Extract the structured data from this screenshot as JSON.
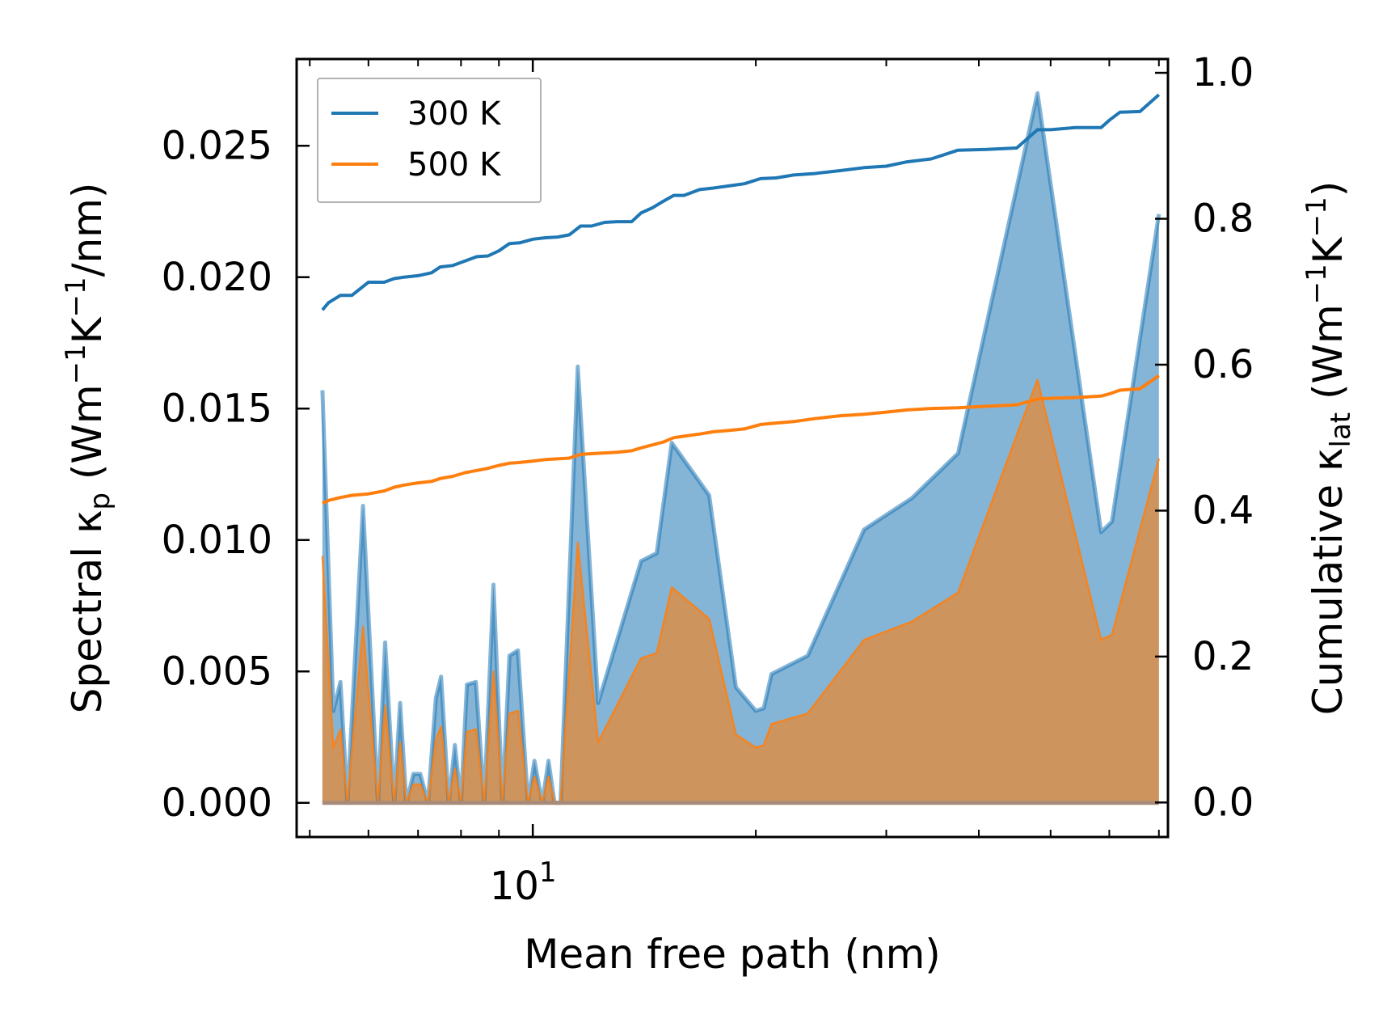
{
  "chart_data": {
    "type": "line",
    "xlabel": "Mean free path (nm)",
    "ylabel_left": "Spectral κ",
    "ylabel_left_sub": "p",
    "ylabel_left_unit_a": "(Wm",
    "ylabel_left_unit_b": "K",
    "ylabel_left_unit_c": "/nm)",
    "ylabel_right": "Cumulative κ",
    "ylabel_right_sub": "lat",
    "ylabel_right_unit_a": "(Wm",
    "ylabel_right_unit_b": "K",
    "ylabel_right_unit_c": ")",
    "exponent": "−1",
    "x_scale": "log",
    "xlim": [
      4.8,
      72
    ],
    "ylim_left": [
      -0.0013,
      0.0283
    ],
    "ylim_right": [
      -0.0473,
      1.0189
    ],
    "x_tick_label_base": "10",
    "x_tick_label_exp": "1",
    "x_tick_label_value": 10,
    "yticks_left": [
      "0.000",
      "0.005",
      "0.010",
      "0.015",
      "0.020",
      "0.025"
    ],
    "yticks_left_values": [
      0,
      0.005,
      0.01,
      0.015,
      0.02,
      0.025
    ],
    "yticks_right": [
      "0.0",
      "0.2",
      "0.4",
      "0.6",
      "0.8",
      "1.0"
    ],
    "yticks_right_values": [
      0,
      0.2,
      0.4,
      0.6,
      0.8,
      1.0
    ],
    "legend": {
      "position": "top-left",
      "entries": [
        "300 K",
        "500 K"
      ]
    },
    "colors": {
      "series_300": "#1f77b4",
      "series_500": "#ff7f0e"
    },
    "spectral": {
      "x": [
        5.2,
        5.38,
        5.5,
        5.62,
        5.9,
        6.18,
        6.32,
        6.5,
        6.62,
        6.75,
        6.9,
        7.05,
        7.22,
        7.4,
        7.52,
        7.7,
        7.85,
        8.0,
        8.15,
        8.38,
        8.6,
        8.85,
        9.1,
        9.3,
        9.55,
        9.85,
        10.05,
        10.3,
        10.5,
        10.7,
        10.9,
        11.5,
        12.25,
        14.0,
        14.7,
        15.4,
        17.3,
        18.8,
        20.0,
        20.5,
        21.0,
        23.5,
        28.0,
        32.5,
        37.5,
        48.0,
        58.5,
        60.5,
        70.0
      ],
      "y300": [
        0.0157,
        0.0035,
        0.0046,
        0.0,
        0.0113,
        0.0,
        0.0061,
        0.0,
        0.0038,
        0.0,
        0.0011,
        0.0011,
        0.0,
        0.004,
        0.0048,
        0.0,
        0.0022,
        0.0,
        0.0045,
        0.0046,
        0.0,
        0.0083,
        0.0,
        0.0056,
        0.0058,
        0.0,
        0.0016,
        0.0,
        0.0016,
        0.0,
        0.0,
        0.0166,
        0.0038,
        0.0092,
        0.0095,
        0.0137,
        0.0117,
        0.0044,
        0.0035,
        0.0036,
        0.0049,
        0.0056,
        0.0104,
        0.0116,
        0.0133,
        0.027,
        0.0103,
        0.0107,
        0.0224
      ],
      "y500": [
        0.0094,
        0.0021,
        0.0028,
        0.0,
        0.0067,
        0.0,
        0.0037,
        0.0,
        0.0023,
        0.0,
        0.0007,
        0.0007,
        0.0,
        0.0024,
        0.0029,
        0.0,
        0.0013,
        0.0,
        0.0027,
        0.0028,
        0.0,
        0.005,
        0.0,
        0.0034,
        0.0035,
        0.0,
        0.001,
        0.0,
        0.001,
        0.0,
        0.0,
        0.0099,
        0.0023,
        0.0055,
        0.0057,
        0.0082,
        0.007,
        0.0026,
        0.0021,
        0.0022,
        0.003,
        0.0034,
        0.0062,
        0.0069,
        0.008,
        0.0161,
        0.0062,
        0.0064,
        0.0131
      ]
    },
    "cumulative": {
      "x": [
        5.2,
        5.3,
        5.5,
        5.7,
        6.0,
        6.3,
        6.5,
        6.7,
        7.0,
        7.3,
        7.5,
        7.8,
        8.1,
        8.4,
        8.7,
        9.0,
        9.3,
        9.6,
        10.0,
        10.4,
        10.8,
        11.2,
        11.6,
        12.0,
        12.5,
        13.0,
        13.6,
        14.0,
        14.5,
        15.0,
        15.5,
        16.0,
        16.8,
        17.5,
        18.4,
        19.3,
        20.3,
        21.3,
        22.5,
        24.0,
        26.0,
        28.0,
        30.0,
        32.0,
        34.5,
        37.5,
        41.0,
        45.0,
        48.0,
        50.0,
        54.0,
        58.5,
        60.0,
        62.0,
        66.0,
        70.0
      ],
      "y300": [
        0.675,
        0.685,
        0.695,
        0.695,
        0.713,
        0.713,
        0.718,
        0.72,
        0.722,
        0.726,
        0.734,
        0.736,
        0.742,
        0.748,
        0.749,
        0.756,
        0.766,
        0.767,
        0.772,
        0.774,
        0.775,
        0.778,
        0.79,
        0.79,
        0.795,
        0.796,
        0.796,
        0.808,
        0.815,
        0.824,
        0.832,
        0.832,
        0.84,
        0.842,
        0.845,
        0.848,
        0.855,
        0.856,
        0.86,
        0.862,
        0.866,
        0.87,
        0.872,
        0.878,
        0.882,
        0.894,
        0.895,
        0.897,
        0.922,
        0.922,
        0.925,
        0.925,
        0.935,
        0.946,
        0.947,
        0.97
      ],
      "y500": [
        0.41,
        0.414,
        0.418,
        0.421,
        0.423,
        0.427,
        0.432,
        0.435,
        0.438,
        0.44,
        0.444,
        0.447,
        0.452,
        0.455,
        0.458,
        0.462,
        0.465,
        0.466,
        0.468,
        0.47,
        0.471,
        0.472,
        0.477,
        0.478,
        0.479,
        0.48,
        0.482,
        0.486,
        0.49,
        0.494,
        0.5,
        0.502,
        0.505,
        0.508,
        0.51,
        0.512,
        0.518,
        0.52,
        0.522,
        0.526,
        0.53,
        0.532,
        0.535,
        0.538,
        0.54,
        0.541,
        0.543,
        0.545,
        0.553,
        0.554,
        0.555,
        0.557,
        0.56,
        0.565,
        0.567,
        0.585
      ]
    }
  }
}
